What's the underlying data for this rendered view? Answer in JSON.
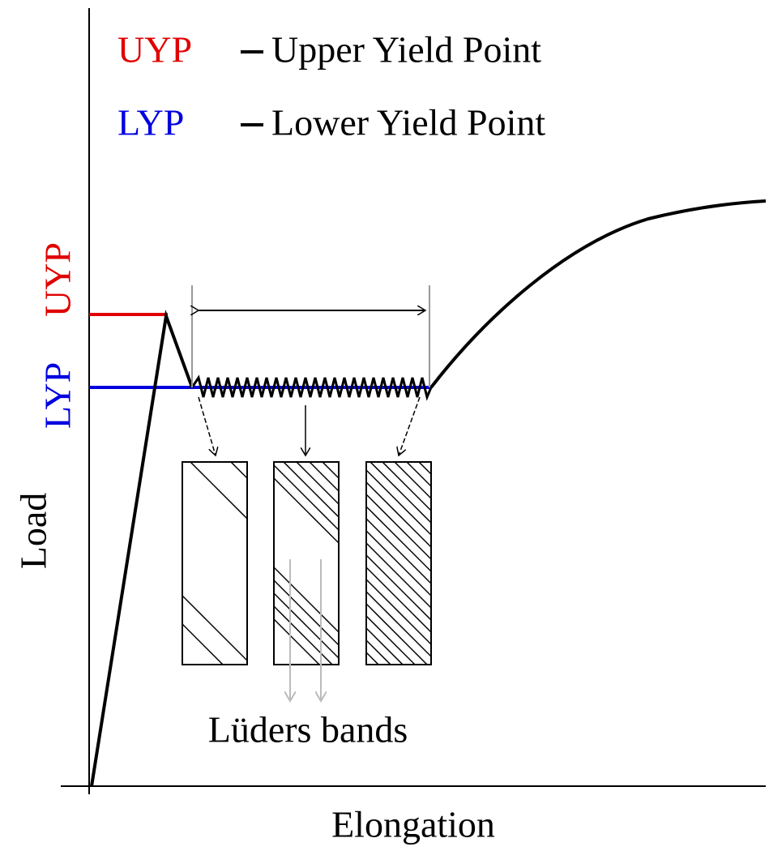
{
  "legend": [
    {
      "abbr": "UYP",
      "label": "Upper Yield Point"
    },
    {
      "abbr": "LYP",
      "label": "Lower Yield Point"
    }
  ],
  "axis_labels": {
    "y": "Load",
    "x": "Elongation"
  },
  "level_labels": {
    "upper": "UYP",
    "lower": "LYP"
  },
  "bands_label": "Lüders bands"
}
